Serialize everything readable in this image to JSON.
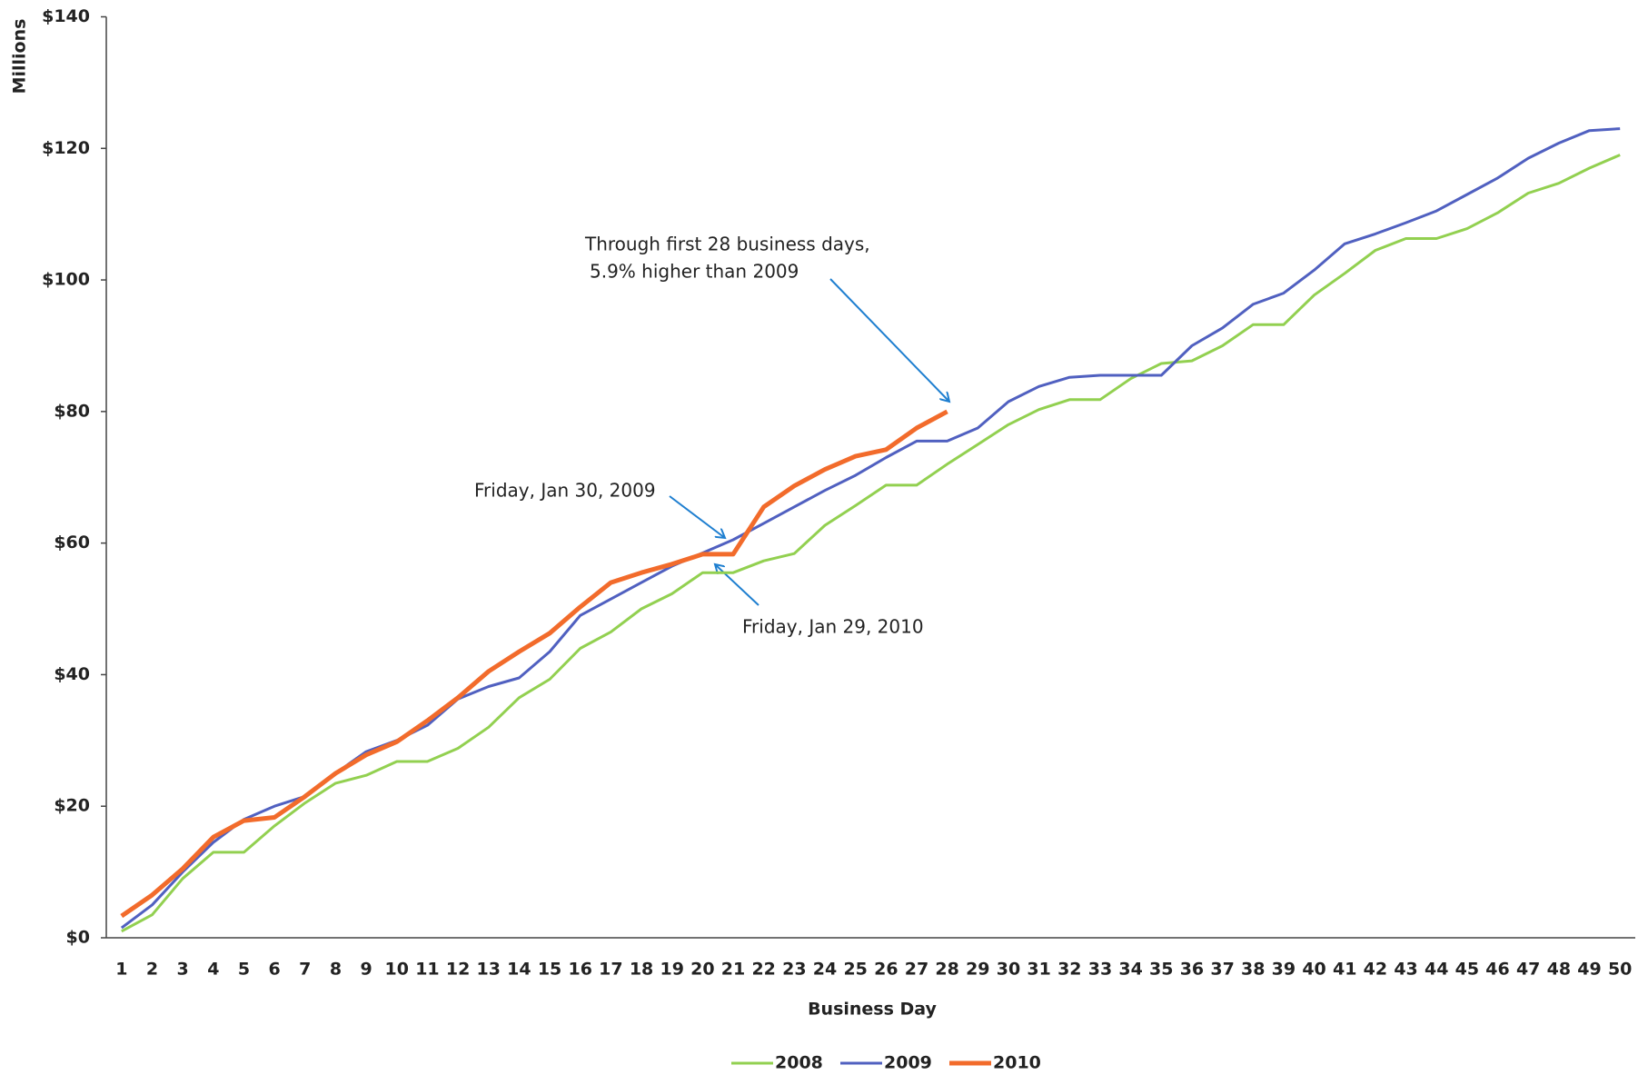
{
  "chart_data": {
    "type": "line",
    "y_label": "Millions",
    "x_label": "Business Day",
    "categories": [
      "1",
      "2",
      "3",
      "4",
      "5",
      "6",
      "7",
      "8",
      "9",
      "10",
      "11",
      "12",
      "13",
      "14",
      "15",
      "16",
      "17",
      "18",
      "19",
      "20",
      "21",
      "22",
      "23",
      "24",
      "25",
      "26",
      "27",
      "28",
      "29",
      "30",
      "31",
      "32",
      "33",
      "34",
      "35",
      "36",
      "37",
      "38",
      "39",
      "40",
      "41",
      "42",
      "43",
      "44",
      "45",
      "46",
      "47",
      "48",
      "49",
      "50"
    ],
    "series": [
      {
        "name": "2008",
        "color": "#92d050",
        "values": [
          1,
          3.5,
          9,
          13,
          13,
          17,
          20.5,
          23.5,
          24.7,
          26.8,
          26.8,
          28.8,
          32,
          36.5,
          39.3,
          44,
          46.5,
          50,
          52.3,
          55.5,
          55.5,
          57.3,
          58.4,
          62.7,
          65.7,
          68.8,
          68.8,
          72,
          75,
          78,
          80.3,
          81.8,
          81.8,
          85,
          87.3,
          87.7,
          90,
          93.2,
          93.2,
          97.7,
          101,
          104.5,
          106.3,
          106.3,
          107.8,
          110.2,
          113.2,
          114.7,
          117,
          119
        ]
      },
      {
        "name": "2009",
        "color": "#5060c0",
        "values": [
          1.5,
          5,
          10,
          14.5,
          18,
          20,
          21.5,
          25,
          28.3,
          30,
          32.3,
          36.3,
          38.2,
          39.5,
          43.5,
          49,
          51.5,
          54,
          56.5,
          58.5,
          60.5,
          63,
          65.5,
          68,
          70.3,
          73,
          75.5,
          75.5,
          77.5,
          81.5,
          83.8,
          85.2,
          85.5,
          85.5,
          85.5,
          90,
          92.7,
          96.3,
          98,
          101.5,
          105.5,
          107,
          108.7,
          110.5,
          113,
          115.5,
          118.5,
          120.8,
          122.7,
          123
        ]
      },
      {
        "name": "2010",
        "color": "#f26b2b",
        "values": [
          3.3,
          6.5,
          10.5,
          15.3,
          17.8,
          18.3,
          21.5,
          25,
          27.8,
          29.8,
          33,
          36.5,
          40.5,
          43.5,
          46.3,
          50.3,
          54,
          55.5,
          56.8,
          58.3,
          58.3,
          65.5,
          68.7,
          71.2,
          73.2,
          74.2,
          77.5,
          80,
          null,
          null,
          null,
          null,
          null,
          null,
          null,
          null,
          null,
          null,
          null,
          null,
          null,
          null,
          null,
          null,
          null,
          null,
          null,
          null,
          null,
          null
        ]
      }
    ],
    "ylim": [
      0,
      140
    ],
    "yticks": [
      {
        "value": 0,
        "label": "$0"
      },
      {
        "value": 20,
        "label": "$20"
      },
      {
        "value": 40,
        "label": "$40"
      },
      {
        "value": 60,
        "label": "$60"
      },
      {
        "value": 80,
        "label": "$80"
      },
      {
        "value": 100,
        "label": "$100"
      },
      {
        "value": 120,
        "label": "$120"
      },
      {
        "value": 140,
        "label": "$140"
      }
    ],
    "grid": false,
    "legend": "bottom",
    "annotations": [
      {
        "text": [
          "Through first 28 business days,",
          "5.9% higher than 2009"
        ]
      },
      {
        "text": "Friday, Jan 30, 2009"
      },
      {
        "text": "Friday, Jan 29, 2010"
      }
    ]
  }
}
